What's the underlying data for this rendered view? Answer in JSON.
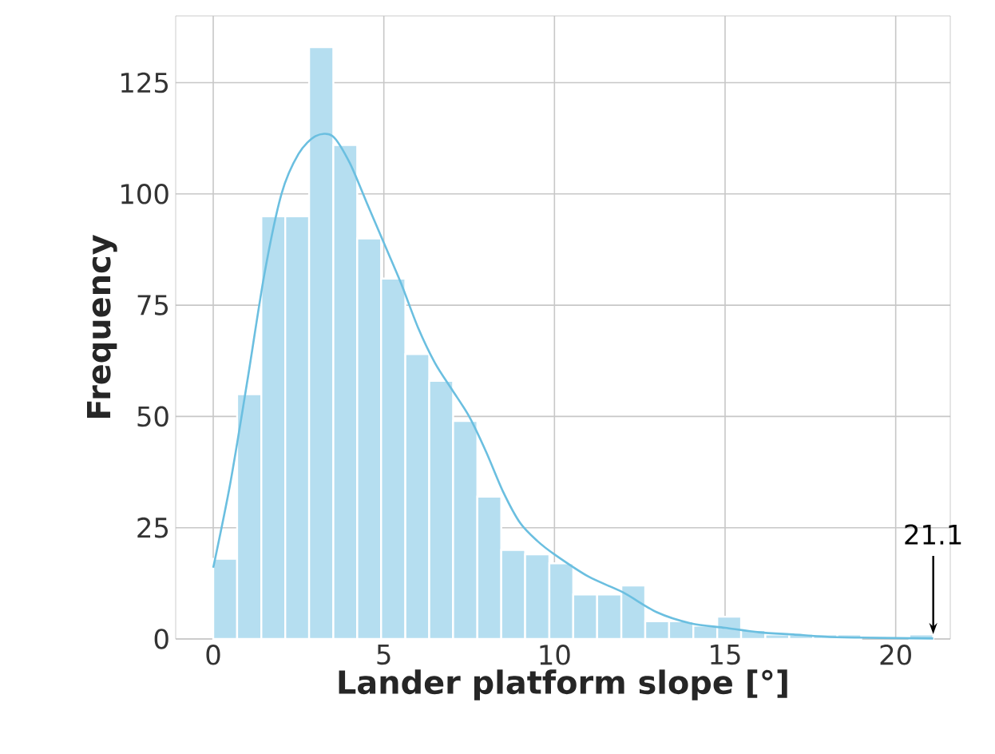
{
  "chart_data": {
    "type": "histogram",
    "xlabel": "Lander platform slope [°]",
    "ylabel": "Frequency",
    "bins": [
      0,
      0.7,
      1.41,
      2.11,
      2.81,
      3.52,
      4.22,
      4.92,
      5.63,
      6.33,
      7.03,
      7.74,
      8.44,
      9.14,
      9.85,
      10.55,
      11.25,
      11.96,
      12.66,
      13.36,
      14.07,
      14.77,
      15.47,
      16.18,
      16.88,
      17.58,
      18.29,
      18.99,
      19.69,
      20.4,
      21.1
    ],
    "values": [
      18,
      55,
      95,
      95,
      133,
      111,
      90,
      81,
      64,
      58,
      49,
      32,
      20,
      19,
      17,
      10,
      10,
      12,
      4,
      4,
      3,
      5,
      2,
      1,
      1,
      1,
      1,
      0,
      0,
      1
    ],
    "color": "#b5def0",
    "series": [
      {
        "type": "line",
        "color": "#6bbfe0",
        "x": [
          0,
          0.5,
          1,
          1.5,
          2,
          2.5,
          3,
          3.5,
          4,
          4.5,
          5,
          5.5,
          6,
          6.5,
          7,
          7.5,
          8,
          8.5,
          9,
          9.5,
          10,
          11,
          12,
          13,
          14,
          15,
          16,
          17,
          18,
          19,
          20,
          21.1
        ],
        "values": [
          16,
          35,
          58,
          82,
          100,
          109,
          113,
          113,
          107,
          98,
          89,
          80,
          70,
          62,
          56,
          50,
          42,
          33,
          26,
          22,
          19,
          14,
          10.5,
          6,
          3.5,
          2.5,
          1.5,
          1,
          0.5,
          0.3,
          0.2,
          0.1
        ]
      }
    ],
    "annotations": [
      {
        "text": "21.1",
        "x": 21.1,
        "y": 0
      }
    ],
    "xlim": [
      -1.1,
      21.6
    ],
    "ylim": [
      0,
      140
    ],
    "xticks": [
      0,
      5,
      10,
      15,
      20
    ],
    "yticks": [
      0,
      25,
      50,
      75,
      100,
      125
    ],
    "grid": true
  }
}
